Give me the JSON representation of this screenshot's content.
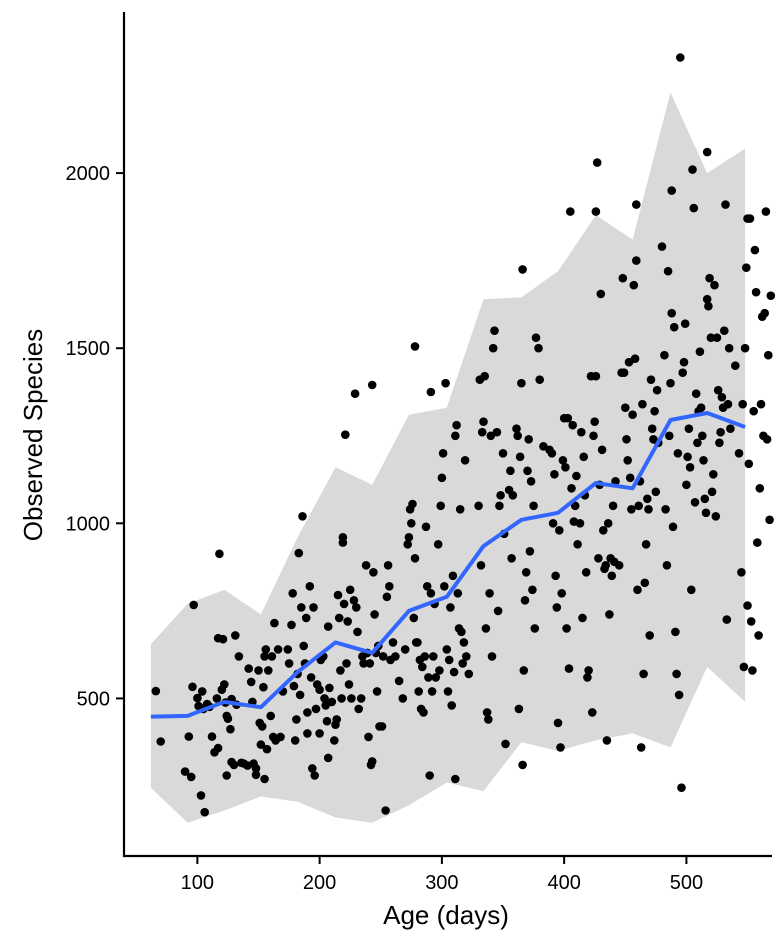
{
  "chart_data": {
    "type": "scatter",
    "xlabel": "Age (days)",
    "ylabel": "Observed Species",
    "xlim": [
      40,
      570
    ],
    "ylim": [
      50,
      2460
    ],
    "x_ticks": [
      100,
      200,
      300,
      400,
      500
    ],
    "y_ticks": [
      500,
      1000,
      1500,
      2000
    ],
    "grid": false,
    "legend": "none",
    "colors": {
      "points": "#000000",
      "line": "#3366FF",
      "band": "#D9D9D9",
      "axis": "#000000"
    },
    "ribbon": {
      "x": [
        62,
        92,
        122,
        152,
        182,
        213,
        243,
        273,
        304,
        334,
        365,
        395,
        426,
        456,
        487,
        517,
        548
      ],
      "lower": [
        245,
        145,
        180,
        220,
        205,
        160,
        145,
        195,
        260,
        235,
        375,
        350,
        380,
        400,
        360,
        590,
        490
      ],
      "upper": [
        655,
        770,
        810,
        740,
        960,
        1160,
        1110,
        1310,
        1330,
        1640,
        1645,
        1720,
        1880,
        1810,
        2230,
        2000,
        2070
      ]
    },
    "trend": {
      "x": [
        62,
        92,
        122,
        152,
        182,
        213,
        243,
        273,
        304,
        334,
        365,
        395,
        426,
        456,
        487,
        517,
        548
      ],
      "y": [
        448,
        450,
        490,
        475,
        575,
        660,
        630,
        750,
        790,
        935,
        1010,
        1030,
        1115,
        1100,
        1295,
        1315,
        1275
      ]
    },
    "points": [
      [
        66,
        521
      ],
      [
        70,
        377
      ],
      [
        90,
        291
      ],
      [
        93,
        391
      ],
      [
        95,
        276
      ],
      [
        96,
        533
      ],
      [
        97,
        767
      ],
      [
        100,
        501
      ],
      [
        101,
        478
      ],
      [
        103,
        223
      ],
      [
        104,
        520
      ],
      [
        105,
        470
      ],
      [
        106,
        175
      ],
      [
        108,
        484
      ],
      [
        110,
        476
      ],
      [
        112,
        391
      ],
      [
        114,
        346
      ],
      [
        116,
        500
      ],
      [
        117,
        672
      ],
      [
        117,
        358
      ],
      [
        118,
        913
      ],
      [
        120,
        525
      ],
      [
        121,
        669
      ],
      [
        122,
        540
      ],
      [
        123,
        488
      ],
      [
        124,
        450
      ],
      [
        124,
        280
      ],
      [
        125,
        442
      ],
      [
        127,
        412
      ],
      [
        128,
        498
      ],
      [
        128,
        318
      ],
      [
        130,
        310
      ],
      [
        131,
        680
      ],
      [
        132,
        482
      ],
      [
        134,
        620
      ],
      [
        136,
        316
      ],
      [
        138,
        314
      ],
      [
        141,
        308
      ],
      [
        142,
        585
      ],
      [
        144,
        547
      ],
      [
        145,
        490
      ],
      [
        146,
        314
      ],
      [
        148,
        300
      ],
      [
        148,
        282
      ],
      [
        150,
        580
      ],
      [
        151,
        430
      ],
      [
        152,
        368
      ],
      [
        153,
        420
      ],
      [
        154,
        532
      ],
      [
        155,
        270
      ],
      [
        155,
        620
      ],
      [
        156,
        640
      ],
      [
        157,
        355
      ],
      [
        158,
        580
      ],
      [
        160,
        450
      ],
      [
        161,
        620
      ],
      [
        162,
        390
      ],
      [
        163,
        715
      ],
      [
        164,
        380
      ],
      [
        166,
        640
      ],
      [
        168,
        390
      ],
      [
        170,
        520
      ],
      [
        174,
        640
      ],
      [
        175,
        600
      ],
      [
        177,
        710
      ],
      [
        178,
        800
      ],
      [
        179,
        535
      ],
      [
        180,
        380
      ],
      [
        181,
        440
      ],
      [
        182,
        570
      ],
      [
        183,
        915
      ],
      [
        184,
        510
      ],
      [
        185,
        760
      ],
      [
        186,
        1020
      ],
      [
        187,
        650
      ],
      [
        188,
        600
      ],
      [
        189,
        730
      ],
      [
        190,
        460
      ],
      [
        190,
        400
      ],
      [
        192,
        820
      ],
      [
        193,
        560
      ],
      [
        194,
        300
      ],
      [
        195,
        760
      ],
      [
        196,
        280
      ],
      [
        197,
        470
      ],
      [
        198,
        540
      ],
      [
        200,
        525
      ],
      [
        200,
        400
      ],
      [
        201,
        610
      ],
      [
        203,
        620
      ],
      [
        204,
        500
      ],
      [
        205,
        480
      ],
      [
        206,
        435
      ],
      [
        207,
        705
      ],
      [
        207,
        330
      ],
      [
        208,
        530
      ],
      [
        210,
        490
      ],
      [
        212,
        380
      ],
      [
        213,
        425
      ],
      [
        214,
        440
      ],
      [
        215,
        795
      ],
      [
        216,
        730
      ],
      [
        217,
        580
      ],
      [
        218,
        500
      ],
      [
        219,
        960
      ],
      [
        219,
        945
      ],
      [
        220,
        770
      ],
      [
        221,
        1253
      ],
      [
        222,
        600
      ],
      [
        223,
        720
      ],
      [
        224,
        540
      ],
      [
        225,
        810
      ],
      [
        226,
        500
      ],
      [
        228,
        780
      ],
      [
        229,
        1370
      ],
      [
        230,
        760
      ],
      [
        231,
        690
      ],
      [
        232,
        470
      ],
      [
        234,
        500
      ],
      [
        235,
        620
      ],
      [
        236,
        600
      ],
      [
        238,
        880
      ],
      [
        239,
        630
      ],
      [
        240,
        390
      ],
      [
        241,
        600
      ],
      [
        242,
        310
      ],
      [
        243,
        320
      ],
      [
        243,
        1395
      ],
      [
        244,
        860
      ],
      [
        245,
        740
      ],
      [
        246,
        630
      ],
      [
        247,
        520
      ],
      [
        248,
        650
      ],
      [
        249,
        420
      ],
      [
        251,
        420
      ],
      [
        252,
        620
      ],
      [
        254,
        180
      ],
      [
        255,
        790
      ],
      [
        256,
        880
      ],
      [
        257,
        820
      ],
      [
        258,
        610
      ],
      [
        260,
        660
      ],
      [
        262,
        620
      ],
      [
        265,
        550
      ],
      [
        268,
        500
      ],
      [
        270,
        640
      ],
      [
        272,
        940
      ],
      [
        273,
        960
      ],
      [
        274,
        1040
      ],
      [
        275,
        1000
      ],
      [
        276,
        1055
      ],
      [
        277,
        730
      ],
      [
        278,
        900
      ],
      [
        278,
        1505
      ],
      [
        279,
        660
      ],
      [
        280,
        660
      ],
      [
        281,
        520
      ],
      [
        282,
        610
      ],
      [
        283,
        470
      ],
      [
        284,
        590
      ],
      [
        285,
        460
      ],
      [
        286,
        620
      ],
      [
        287,
        990
      ],
      [
        288,
        820
      ],
      [
        289,
        560
      ],
      [
        290,
        280
      ],
      [
        291,
        800
      ],
      [
        291,
        1375
      ],
      [
        292,
        520
      ],
      [
        293,
        620
      ],
      [
        294,
        770
      ],
      [
        295,
        560
      ],
      [
        297,
        940
      ],
      [
        298,
        580
      ],
      [
        299,
        1050
      ],
      [
        300,
        1130
      ],
      [
        301,
        1200
      ],
      [
        302,
        820
      ],
      [
        303,
        1400
      ],
      [
        304,
        640
      ],
      [
        305,
        520
      ],
      [
        306,
        610
      ],
      [
        307,
        760
      ],
      [
        308,
        480
      ],
      [
        309,
        850
      ],
      [
        310,
        575
      ],
      [
        311,
        1250
      ],
      [
        311,
        270
      ],
      [
        312,
        1280
      ],
      [
        313,
        800
      ],
      [
        314,
        700
      ],
      [
        315,
        1040
      ],
      [
        316,
        690
      ],
      [
        317,
        600
      ],
      [
        318,
        660
      ],
      [
        319,
        1180
      ],
      [
        320,
        620
      ],
      [
        322,
        570
      ],
      [
        330,
        1050
      ],
      [
        331,
        1410
      ],
      [
        332,
        880
      ],
      [
        333,
        1260
      ],
      [
        334,
        1290
      ],
      [
        335,
        1420
      ],
      [
        336,
        700
      ],
      [
        337,
        460
      ],
      [
        338,
        440
      ],
      [
        339,
        800
      ],
      [
        340,
        1250
      ],
      [
        341,
        620
      ],
      [
        342,
        1500
      ],
      [
        343,
        1550
      ],
      [
        345,
        1260
      ],
      [
        346,
        750
      ],
      [
        347,
        1050
      ],
      [
        348,
        1080
      ],
      [
        350,
        1200
      ],
      [
        351,
        970
      ],
      [
        352,
        370
      ],
      [
        355,
        1095
      ],
      [
        356,
        1150
      ],
      [
        357,
        900
      ],
      [
        358,
        1080
      ],
      [
        361,
        1270
      ],
      [
        362,
        1250
      ],
      [
        363,
        470
      ],
      [
        364,
        1190
      ],
      [
        365,
        1400
      ],
      [
        366,
        310
      ],
      [
        366,
        1725
      ],
      [
        367,
        580
      ],
      [
        368,
        780
      ],
      [
        369,
        860
      ],
      [
        370,
        1150
      ],
      [
        371,
        1240
      ],
      [
        372,
        920
      ],
      [
        373,
        1120
      ],
      [
        374,
        810
      ],
      [
        375,
        1050
      ],
      [
        376,
        700
      ],
      [
        377,
        1530
      ],
      [
        379,
        1500
      ],
      [
        380,
        1410
      ],
      [
        383,
        1220
      ],
      [
        388,
        1210
      ],
      [
        390,
        1200
      ],
      [
        391,
        1000
      ],
      [
        392,
        1140
      ],
      [
        393,
        850
      ],
      [
        394,
        760
      ],
      [
        395,
        430
      ],
      [
        396,
        980
      ],
      [
        397,
        360
      ],
      [
        398,
        800
      ],
      [
        399,
        1180
      ],
      [
        400,
        1300
      ],
      [
        401,
        1160
      ],
      [
        402,
        700
      ],
      [
        403,
        1300
      ],
      [
        404,
        585
      ],
      [
        405,
        1890
      ],
      [
        406,
        1100
      ],
      [
        407,
        1280
      ],
      [
        408,
        1005
      ],
      [
        409,
        1050
      ],
      [
        410,
        1135
      ],
      [
        411,
        940
      ],
      [
        413,
        1000
      ],
      [
        414,
        1260
      ],
      [
        415,
        730
      ],
      [
        416,
        1190
      ],
      [
        417,
        1080
      ],
      [
        418,
        860
      ],
      [
        419,
        560
      ],
      [
        420,
        580
      ],
      [
        422,
        1420
      ],
      [
        423,
        460
      ],
      [
        424,
        1250
      ],
      [
        425,
        1290
      ],
      [
        426,
        1420
      ],
      [
        426,
        1890
      ],
      [
        427,
        2030
      ],
      [
        428,
        900
      ],
      [
        429,
        1110
      ],
      [
        430,
        1655
      ],
      [
        431,
        1210
      ],
      [
        432,
        980
      ],
      [
        433,
        870
      ],
      [
        434,
        880
      ],
      [
        435,
        380
      ],
      [
        436,
        1000
      ],
      [
        437,
        740
      ],
      [
        438,
        900
      ],
      [
        439,
        850
      ],
      [
        440,
        1050
      ],
      [
        441,
        890
      ],
      [
        442,
        1120
      ],
      [
        445,
        880
      ],
      [
        447,
        1430
      ],
      [
        448,
        1700
      ],
      [
        449,
        1430
      ],
      [
        450,
        1330
      ],
      [
        451,
        1240
      ],
      [
        452,
        1180
      ],
      [
        453,
        1460
      ],
      [
        454,
        1130
      ],
      [
        455,
        1040
      ],
      [
        456,
        1310
      ],
      [
        457,
        1680
      ],
      [
        458,
        1470
      ],
      [
        459,
        1750
      ],
      [
        459,
        1910
      ],
      [
        460,
        810
      ],
      [
        461,
        1050
      ],
      [
        462,
        1120
      ],
      [
        463,
        360
      ],
      [
        464,
        1340
      ],
      [
        465,
        570
      ],
      [
        466,
        830
      ],
      [
        467,
        940
      ],
      [
        468,
        1070
      ],
      [
        469,
        1040
      ],
      [
        470,
        680
      ],
      [
        471,
        1410
      ],
      [
        472,
        1270
      ],
      [
        473,
        1240
      ],
      [
        474,
        1320
      ],
      [
        475,
        1090
      ],
      [
        476,
        1380
      ],
      [
        477,
        1230
      ],
      [
        480,
        1790
      ],
      [
        482,
        1480
      ],
      [
        483,
        1040
      ],
      [
        484,
        880
      ],
      [
        485,
        1720
      ],
      [
        486,
        1250
      ],
      [
        487,
        1400
      ],
      [
        488,
        1600
      ],
      [
        488,
        1950
      ],
      [
        489,
        990
      ],
      [
        490,
        1560
      ],
      [
        491,
        690
      ],
      [
        492,
        570
      ],
      [
        493,
        1200
      ],
      [
        494,
        510
      ],
      [
        495,
        2330
      ],
      [
        496,
        245
      ],
      [
        497,
        1430
      ],
      [
        498,
        1460
      ],
      [
        499,
        1570
      ],
      [
        500,
        1110
      ],
      [
        501,
        1190
      ],
      [
        502,
        1270
      ],
      [
        503,
        1160
      ],
      [
        504,
        810
      ],
      [
        505,
        2010
      ],
      [
        506,
        1900
      ],
      [
        507,
        1060
      ],
      [
        508,
        1370
      ],
      [
        509,
        1230
      ],
      [
        510,
        1320
      ],
      [
        511,
        1490
      ],
      [
        512,
        1330
      ],
      [
        513,
        1250
      ],
      [
        514,
        1180
      ],
      [
        515,
        1070
      ],
      [
        516,
        1030
      ],
      [
        517,
        2060
      ],
      [
        517,
        1640
      ],
      [
        518,
        1620
      ],
      [
        519,
        1700
      ],
      [
        520,
        1530
      ],
      [
        521,
        1090
      ],
      [
        522,
        1140
      ],
      [
        523,
        1680
      ],
      [
        524,
        1020
      ],
      [
        525,
        1530
      ],
      [
        526,
        1380
      ],
      [
        527,
        1230
      ],
      [
        528,
        1260
      ],
      [
        529,
        1360
      ],
      [
        530,
        1330
      ],
      [
        531,
        1550
      ],
      [
        532,
        1910
      ],
      [
        533,
        725
      ],
      [
        534,
        1340
      ],
      [
        535,
        1500
      ],
      [
        536,
        1270
      ],
      [
        540,
        1450
      ],
      [
        543,
        1200
      ],
      [
        545,
        860
      ],
      [
        546,
        1340
      ],
      [
        547,
        590
      ],
      [
        548,
        1500
      ],
      [
        549,
        1730
      ],
      [
        550,
        1870
      ],
      [
        550,
        765
      ],
      [
        551,
        1170
      ],
      [
        552,
        1870
      ],
      [
        553,
        720
      ],
      [
        554,
        580
      ],
      [
        555,
        1320
      ],
      [
        556,
        1780
      ],
      [
        557,
        1660
      ],
      [
        558,
        945
      ],
      [
        559,
        680
      ],
      [
        560,
        1100
      ],
      [
        561,
        1340
      ],
      [
        562,
        1590
      ],
      [
        563,
        1250
      ],
      [
        564,
        1600
      ],
      [
        565,
        1890
      ],
      [
        566,
        1240
      ],
      [
        567,
        1480
      ],
      [
        568,
        1010
      ],
      [
        569,
        1650
      ]
    ]
  }
}
